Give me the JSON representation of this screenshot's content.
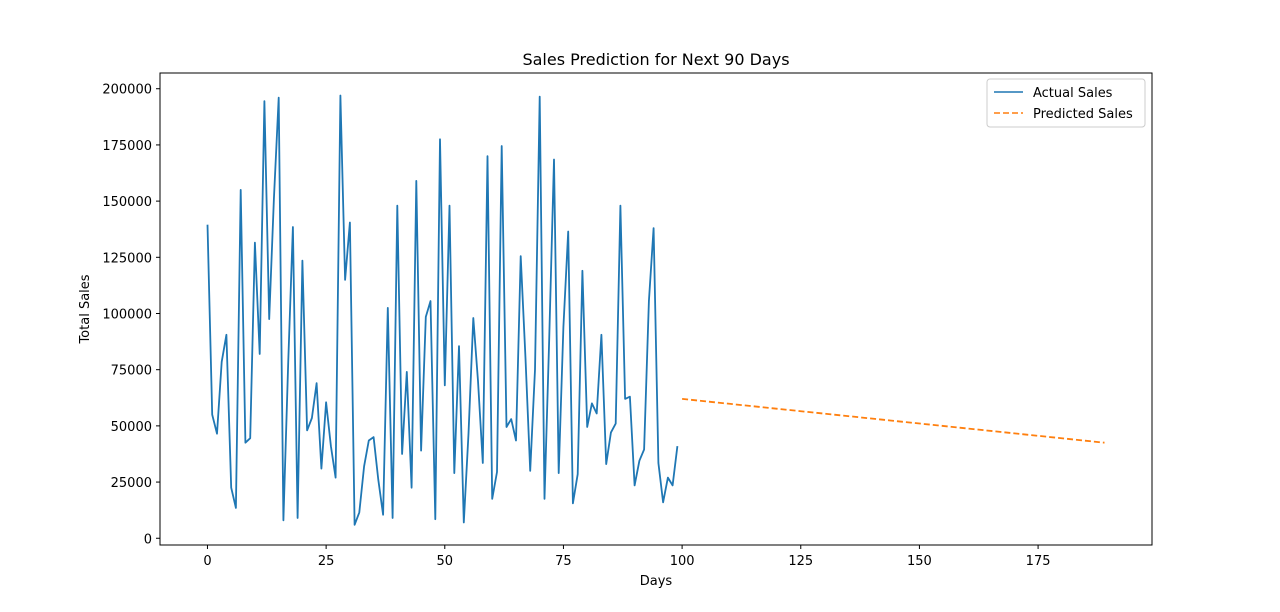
{
  "chart_data": {
    "type": "line",
    "title": "Sales Prediction for Next 90 Days",
    "xlabel": "Days",
    "ylabel": "Total Sales",
    "xlim": [
      -10,
      199
    ],
    "ylim": [
      -3000,
      207000
    ],
    "xticks": [
      0,
      25,
      50,
      75,
      100,
      125,
      150,
      175
    ],
    "yticks": [
      0,
      25000,
      50000,
      75000,
      100000,
      125000,
      150000,
      175000,
      200000
    ],
    "grid": false,
    "legend_position": "top-right",
    "series": [
      {
        "name": "Actual Sales",
        "color": "#1f77b4",
        "style": "solid",
        "x": [
          0,
          1,
          2,
          3,
          4,
          5,
          6,
          7,
          8,
          9,
          10,
          11,
          12,
          13,
          14,
          15,
          16,
          17,
          18,
          19,
          20,
          21,
          22,
          23,
          24,
          25,
          26,
          27,
          28,
          29,
          30,
          31,
          32,
          33,
          34,
          35,
          36,
          37,
          38,
          39,
          40,
          41,
          42,
          43,
          44,
          45,
          46,
          47,
          48,
          49,
          50,
          51,
          52,
          53,
          54,
          55,
          56,
          57,
          58,
          59,
          60,
          61,
          62,
          63,
          64,
          65,
          66,
          67,
          68,
          69,
          70,
          71,
          72,
          73,
          74,
          75,
          76,
          77,
          78,
          79,
          80,
          81,
          82,
          83,
          84,
          85,
          86,
          87,
          88,
          89,
          90,
          91,
          92,
          93,
          94,
          95,
          96,
          97,
          98,
          99
        ],
        "values": [
          139500,
          55000,
          46500,
          78500,
          90500,
          22500,
          13500,
          155000,
          42500,
          44500,
          131500,
          82000,
          194500,
          97500,
          151000,
          196000,
          8000,
          78000,
          138500,
          9000,
          123500,
          48000,
          53500,
          69000,
          31000,
          60500,
          41000,
          27000,
          197000,
          115000,
          140500,
          6000,
          11500,
          32000,
          43500,
          45000,
          26000,
          10500,
          102500,
          9000,
          148000,
          37500,
          74000,
          22500,
          159000,
          39000,
          98500,
          105500,
          8500,
          177500,
          68000,
          148000,
          29000,
          85500,
          7000,
          46500,
          98000,
          70000,
          33500,
          170000,
          17500,
          29500,
          174500,
          49500,
          53000,
          43500,
          125500,
          80000,
          30000,
          75000,
          196500,
          17500,
          88500,
          168500,
          29000,
          94000,
          136500,
          15500,
          28500,
          119000,
          49500,
          60000,
          55500,
          90500,
          33000,
          47000,
          51000,
          148000,
          62000,
          63000,
          23500,
          34500,
          39500,
          105500,
          138000,
          33500,
          16000,
          27000,
          23500,
          41000
        ]
      },
      {
        "name": "Predicted Sales",
        "color": "#ff7f0e",
        "style": "dashed",
        "x": [
          100,
          189
        ],
        "values": [
          62000,
          42500
        ]
      }
    ]
  }
}
